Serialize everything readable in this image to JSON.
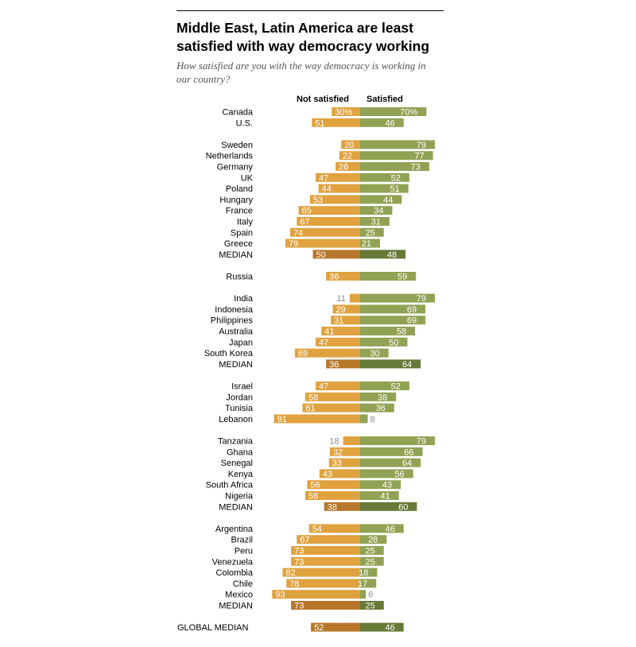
{
  "header": {
    "title": "Middle East, Latin America are least satisfied with way democracy working",
    "subtitle": "How satisfied are you with the way democracy is working in our country?"
  },
  "legend": {
    "not_satisfied": "Not satisfied",
    "satisfied": "Satisfied"
  },
  "colors": {
    "not_satisfied": "#E0A23F",
    "satisfied": "#92A254",
    "not_satisfied_median": "#B7772A",
    "satisfied_median": "#677937"
  },
  "chart_data": {
    "type": "bar",
    "orientation": "horizontal-diverging",
    "title": "Middle East, Latin America are least satisfied with way democracy working",
    "subtitle": "How satisfied are you with the way democracy is working in our country?",
    "series_names": [
      "Not satisfied",
      "Satisfied"
    ],
    "unit": "%",
    "groups": [
      {
        "rows": [
          {
            "label": "Canada",
            "not_satisfied": 30,
            "satisfied": 70,
            "ns_label": "30%",
            "s_label": "70%"
          },
          {
            "label": "U.S.",
            "not_satisfied": 51,
            "satisfied": 46,
            "ns_label": "51",
            "s_label": "46"
          }
        ]
      },
      {
        "rows": [
          {
            "label": "Sweden",
            "not_satisfied": 20,
            "satisfied": 79,
            "ns_label": "20",
            "s_label": "79"
          },
          {
            "label": "Netherlands",
            "not_satisfied": 22,
            "satisfied": 77,
            "ns_label": "22",
            "s_label": "77"
          },
          {
            "label": "Germany",
            "not_satisfied": 26,
            "satisfied": 73,
            "ns_label": "26",
            "s_label": "73"
          },
          {
            "label": "UK",
            "not_satisfied": 47,
            "satisfied": 52,
            "ns_label": "47",
            "s_label": "52"
          },
          {
            "label": "Poland",
            "not_satisfied": 44,
            "satisfied": 51,
            "ns_label": "44",
            "s_label": "51"
          },
          {
            "label": "Hungary",
            "not_satisfied": 53,
            "satisfied": 44,
            "ns_label": "53",
            "s_label": "44"
          },
          {
            "label": "France",
            "not_satisfied": 65,
            "satisfied": 34,
            "ns_label": "65",
            "s_label": "34"
          },
          {
            "label": "Italy",
            "not_satisfied": 67,
            "satisfied": 31,
            "ns_label": "67",
            "s_label": "31"
          },
          {
            "label": "Spain",
            "not_satisfied": 74,
            "satisfied": 25,
            "ns_label": "74",
            "s_label": "25"
          },
          {
            "label": "Greece",
            "not_satisfied": 79,
            "satisfied": 21,
            "ns_label": "79",
            "s_label": "21"
          },
          {
            "label": "MEDIAN",
            "not_satisfied": 50,
            "satisfied": 48,
            "ns_label": "50",
            "s_label": "48",
            "median": true
          }
        ]
      },
      {
        "rows": [
          {
            "label": "Russia",
            "not_satisfied": 36,
            "satisfied": 59,
            "ns_label": "36",
            "s_label": "59"
          }
        ]
      },
      {
        "rows": [
          {
            "label": "India",
            "not_satisfied": 11,
            "satisfied": 79,
            "ns_label": "11",
            "s_label": "79"
          },
          {
            "label": "Indonesia",
            "not_satisfied": 29,
            "satisfied": 69,
            "ns_label": "29",
            "s_label": "69"
          },
          {
            "label": "Philippines",
            "not_satisfied": 31,
            "satisfied": 69,
            "ns_label": "31",
            "s_label": "69"
          },
          {
            "label": "Australia",
            "not_satisfied": 41,
            "satisfied": 58,
            "ns_label": "41",
            "s_label": "58"
          },
          {
            "label": "Japan",
            "not_satisfied": 47,
            "satisfied": 50,
            "ns_label": "47",
            "s_label": "50"
          },
          {
            "label": "South Korea",
            "not_satisfied": 69,
            "satisfied": 30,
            "ns_label": "69",
            "s_label": "30"
          },
          {
            "label": "MEDIAN",
            "not_satisfied": 36,
            "satisfied": 64,
            "ns_label": "36",
            "s_label": "64",
            "median": true
          }
        ]
      },
      {
        "rows": [
          {
            "label": "Israel",
            "not_satisfied": 47,
            "satisfied": 52,
            "ns_label": "47",
            "s_label": "52"
          },
          {
            "label": "Jordan",
            "not_satisfied": 58,
            "satisfied": 38,
            "ns_label": "58",
            "s_label": "38"
          },
          {
            "label": "Tunisia",
            "not_satisfied": 61,
            "satisfied": 36,
            "ns_label": "61",
            "s_label": "36"
          },
          {
            "label": "Lebanon",
            "not_satisfied": 91,
            "satisfied": 8,
            "ns_label": "91",
            "s_label": "8"
          }
        ]
      },
      {
        "rows": [
          {
            "label": "Tanzania",
            "not_satisfied": 18,
            "satisfied": 79,
            "ns_label": "18",
            "s_label": "79"
          },
          {
            "label": "Ghana",
            "not_satisfied": 32,
            "satisfied": 66,
            "ns_label": "32",
            "s_label": "66"
          },
          {
            "label": "Senegal",
            "not_satisfied": 33,
            "satisfied": 64,
            "ns_label": "33",
            "s_label": "64"
          },
          {
            "label": "Kenya",
            "not_satisfied": 43,
            "satisfied": 56,
            "ns_label": "43",
            "s_label": "56"
          },
          {
            "label": "South Africa",
            "not_satisfied": 56,
            "satisfied": 43,
            "ns_label": "56",
            "s_label": "43"
          },
          {
            "label": "Nigeria",
            "not_satisfied": 58,
            "satisfied": 41,
            "ns_label": "58",
            "s_label": "41"
          },
          {
            "label": "MEDIAN",
            "not_satisfied": 38,
            "satisfied": 60,
            "ns_label": "38",
            "s_label": "60",
            "median": true
          }
        ]
      },
      {
        "rows": [
          {
            "label": "Argentina",
            "not_satisfied": 54,
            "satisfied": 46,
            "ns_label": "54",
            "s_label": "46"
          },
          {
            "label": "Brazil",
            "not_satisfied": 67,
            "satisfied": 28,
            "ns_label": "67",
            "s_label": "28"
          },
          {
            "label": "Peru",
            "not_satisfied": 73,
            "satisfied": 25,
            "ns_label": "73",
            "s_label": "25"
          },
          {
            "label": "Venezuela",
            "not_satisfied": 73,
            "satisfied": 25,
            "ns_label": "73",
            "s_label": "25"
          },
          {
            "label": "Colombia",
            "not_satisfied": 82,
            "satisfied": 18,
            "ns_label": "82",
            "s_label": "18"
          },
          {
            "label": "Chile",
            "not_satisfied": 78,
            "satisfied": 17,
            "ns_label": "78",
            "s_label": "17"
          },
          {
            "label": "Mexico",
            "not_satisfied": 93,
            "satisfied": 6,
            "ns_label": "93",
            "s_label": "6"
          },
          {
            "label": "MEDIAN",
            "not_satisfied": 73,
            "satisfied": 25,
            "ns_label": "73",
            "s_label": "25",
            "median": true
          }
        ]
      },
      {
        "rows": [
          {
            "label": "GLOBAL MEDIAN",
            "not_satisfied": 52,
            "satisfied": 46,
            "ns_label": "52",
            "s_label": "46",
            "median": true,
            "global": true
          }
        ]
      }
    ]
  }
}
